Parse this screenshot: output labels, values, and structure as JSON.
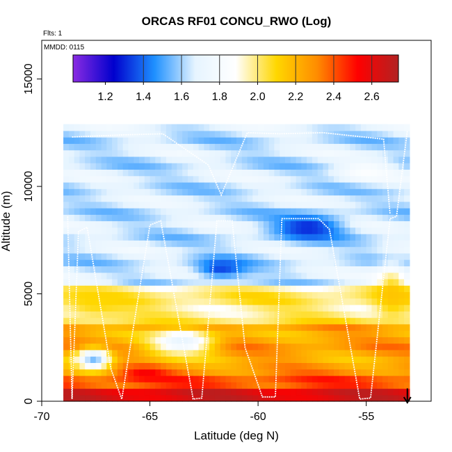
{
  "chart_data": {
    "type": "heatmap",
    "title": "ORCAS RF01 CONCU_RWO (Log)",
    "flights_label": "Flts: 1",
    "date_label": "MMDD: 0115",
    "xlabel": "Latitude (deg N)",
    "ylabel": "Altitude (m)",
    "xlim": [
      -70,
      -52
    ],
    "ylim": [
      0,
      16800
    ],
    "x_ticks": [
      -70,
      -65,
      -60,
      -55
    ],
    "x_tick_labels": [
      "-70",
      "-65",
      "-60",
      "-55"
    ],
    "y_ticks": [
      0,
      5000,
      10000,
      15000
    ],
    "y_tick_labels": [
      "0",
      "5000",
      "10000",
      "15000"
    ],
    "colorbar": {
      "range": [
        1.03,
        2.74
      ],
      "ticks": [
        1.2,
        1.4,
        1.6,
        1.8,
        2.0,
        2.2,
        2.4,
        2.6
      ],
      "tick_labels": [
        "1.2",
        "1.4",
        "1.6",
        "1.8",
        "2.0",
        "2.2",
        "2.4",
        "2.6"
      ],
      "divisions": [
        1.4,
        1.6,
        1.8,
        2.0,
        2.2,
        2.4,
        2.6
      ],
      "colors": [
        "#8A2BE2",
        "#0000CD",
        "#1E90FF",
        "#E6F4FF",
        "#FFFFFF",
        "#FFD700",
        "#FF8C00",
        "#FF0000",
        "#B22222"
      ]
    },
    "field_x_range": [
      -69,
      -53
    ],
    "field_top_altitude": 12700,
    "layers": [
      {
        "altitude_range": [
          0,
          700
        ],
        "value": 2.6
      },
      {
        "altitude_range": [
          700,
          1300
        ],
        "value": 2.45
      },
      {
        "altitude_range": [
          1300,
          3500
        ],
        "value": 2.25
      },
      {
        "altitude_range": [
          3500,
          5500
        ],
        "value": 2.0
      },
      {
        "altitude_range": [
          5500,
          12500
        ],
        "value": 1.65
      }
    ],
    "features": [
      {
        "center": [
          -57.7,
          8100
        ],
        "radius": [
          1.6,
          600
        ],
        "value": 1.3
      },
      {
        "center": [
          -61.7,
          6200
        ],
        "radius": [
          1.2,
          500
        ],
        "value": 1.35
      },
      {
        "center": [
          -67.6,
          2000
        ],
        "radius": [
          0.8,
          500
        ],
        "value": 1.55
      },
      {
        "center": [
          -67.5,
          4600
        ],
        "radius": [
          1.6,
          700
        ],
        "value": 2.1
      },
      {
        "center": [
          -63.5,
          2800
        ],
        "radius": [
          1.5,
          600
        ],
        "value": 1.7
      },
      {
        "center": [
          -65.2,
          1300
        ],
        "radius": [
          1.0,
          300
        ],
        "value": 2.55
      },
      {
        "center": [
          -53.8,
          5000
        ],
        "radius": [
          0.8,
          1200
        ],
        "value": 2.15
      },
      {
        "center": [
          -55.0,
          10700
        ],
        "radius": [
          1.2,
          500
        ],
        "value": 1.85
      }
    ],
    "flight_track": {
      "lat": [
        -68.8,
        -68.6,
        -68.3,
        -67.9,
        -66.8,
        -66.3,
        -65.0,
        -64.5,
        -63.0,
        -62.6,
        -61.9,
        -61.2,
        -60.6,
        -59.8,
        -59.2,
        -58.9,
        -57.2,
        -56.7,
        -55.3,
        -54.8,
        -53.9,
        -53.6,
        -53.1
      ],
      "alt": [
        8600,
        100,
        7900,
        8100,
        1500,
        100,
        8200,
        8400,
        100,
        150,
        8400,
        8400,
        2500,
        200,
        200,
        8500,
        8500,
        8000,
        100,
        150,
        8500,
        8600,
        12600
      ],
      "upper_loop": {
        "lat": [
          -68.6,
          -66.2,
          -64.4,
          -62.3,
          -61.7,
          -60.5,
          -59.0,
          -57.0,
          -54.2,
          -53.9
        ],
        "alt": [
          12300,
          12400,
          12450,
          11000,
          9600,
          12500,
          12450,
          12500,
          12200,
          8700
        ]
      }
    },
    "end_marker": {
      "lat": -53.1,
      "direction": "down"
    }
  }
}
